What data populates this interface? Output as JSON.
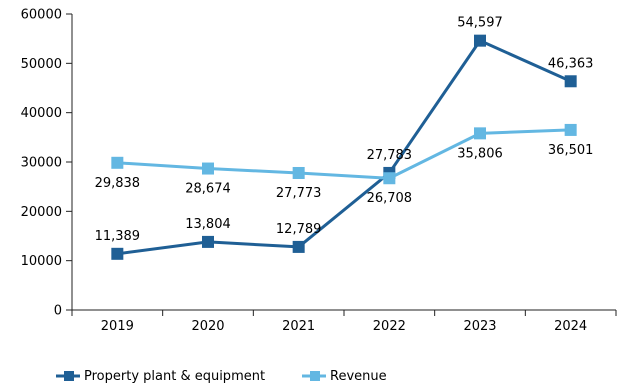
{
  "chart_data": {
    "type": "line",
    "categories": [
      "2019",
      "2020",
      "2021",
      "2022",
      "2023",
      "2024"
    ],
    "y_ticks": [
      "0",
      "10000",
      "20000",
      "30000",
      "40000",
      "50000",
      "60000"
    ],
    "ylim": [
      0,
      60000
    ],
    "grid": false,
    "legend_position": "bottom",
    "series": [
      {
        "name": "Property plant & equipment",
        "color": "#1F5F95",
        "values": [
          11389,
          13804,
          12789,
          27783,
          54597,
          46363
        ],
        "labels": [
          "11,389",
          "13,804",
          "12,789",
          "27,783",
          "54,597",
          "46,363"
        ]
      },
      {
        "name": "Revenue",
        "color": "#63B7E2",
        "values": [
          29838,
          28674,
          27773,
          26708,
          35806,
          36501
        ],
        "labels": [
          "29,838",
          "28,674",
          "27,773",
          "26,708",
          "35,806",
          "36,501"
        ]
      }
    ]
  }
}
